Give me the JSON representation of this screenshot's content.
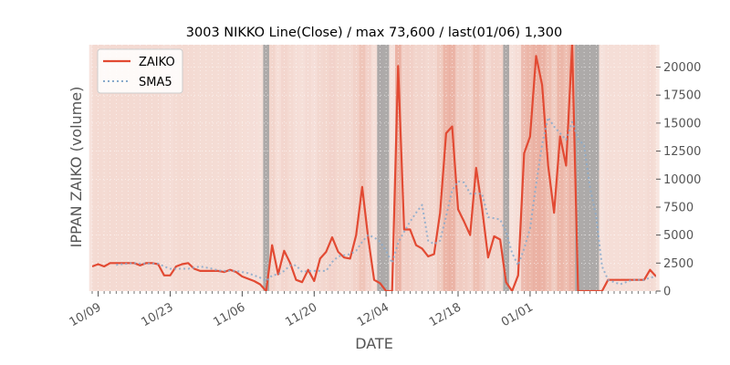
{
  "chart_data": {
    "type": "line",
    "title": "3003 NIKKO Line(Close) / max 73,600 / last(01/06) 1,300",
    "xlabel": "DATE",
    "ylabel": "IPPAN ZAIKO (volume)",
    "ylim": [
      0,
      22000
    ],
    "y_ticks": [
      0,
      2500,
      5000,
      7500,
      10000,
      12500,
      15000,
      17500,
      20000
    ],
    "y_tick_labels": [
      "0",
      "2500",
      "5000",
      "7500",
      "10000",
      "12500",
      "15000",
      "17500",
      "20000"
    ],
    "x_tick_labels": [
      "10/09",
      "10/23",
      "11/06",
      "11/20",
      "12/04",
      "12/18",
      "01/01"
    ],
    "x_tick_positions": [
      1,
      13,
      25,
      37,
      49,
      61,
      73
    ],
    "grid": true,
    "legend_position": "top-left",
    "series": [
      {
        "name": "ZAIKO",
        "color": "#e24a33",
        "style": "solid",
        "values": [
          2200,
          2400,
          2200,
          2500,
          2500,
          2500,
          2500,
          2500,
          2300,
          2500,
          2500,
          2400,
          1400,
          1400,
          2200,
          2400,
          2500,
          2000,
          1800,
          1800,
          1800,
          1800,
          1700,
          1900,
          1700,
          1300,
          1100,
          900,
          600,
          0,
          4100,
          1500,
          3600,
          2500,
          1000,
          800,
          1900,
          900,
          2900,
          3500,
          4800,
          3500,
          3000,
          2900,
          5000,
          9300,
          4800,
          1000,
          700,
          0,
          0,
          20100,
          5500,
          5500,
          4100,
          3800,
          3100,
          3300,
          7000,
          14100,
          14700,
          7300,
          6200,
          5000,
          11000,
          7400,
          3000,
          4900,
          4600,
          800,
          0,
          1400,
          12300,
          13800,
          21000,
          18400,
          11200,
          7000,
          13800,
          11200,
          22000,
          0,
          0,
          0,
          0,
          0,
          1000,
          1000,
          1000,
          1000,
          1000,
          1000,
          1000,
          1900,
          1300
        ]
      },
      {
        "name": "SMA5",
        "color": "#88aacc",
        "style": "dotted",
        "values": [
          null,
          null,
          null,
          null,
          2350,
          2400,
          2450,
          2500,
          2450,
          2450,
          2450,
          2450,
          2200,
          2000,
          2000,
          2000,
          2000,
          2100,
          2200,
          2100,
          2000,
          1850,
          1800,
          1800,
          1800,
          1700,
          1600,
          1400,
          1200,
          900,
          1400,
          1500,
          1800,
          2300,
          2300,
          1700,
          1800,
          1800,
          1800,
          1800,
          2600,
          3100,
          3200,
          3300,
          3600,
          4400,
          5000,
          4800,
          4400,
          3600,
          2500,
          4300,
          5300,
          6200,
          7000,
          7700,
          4500,
          4200,
          4500,
          6700,
          9000,
          9800,
          9700,
          8700,
          8700,
          8700,
          6600,
          6500,
          6400,
          5300,
          3400,
          2300,
          3800,
          5600,
          9500,
          13100,
          15500,
          14700,
          14100,
          13500,
          15100,
          13600,
          13000,
          9200,
          6700,
          2200,
          1000,
          800,
          600,
          800,
          1000,
          1000,
          1000,
          1200,
          1300
        ]
      }
    ],
    "bands": [
      {
        "start": 29,
        "end": 29,
        "color": "#a0a0a0"
      },
      {
        "start": 48,
        "end": 49,
        "color": "#a0a0a0"
      },
      {
        "start": 69,
        "end": 69,
        "color": "#a0a0a0"
      },
      {
        "start": 81,
        "end": 84,
        "color": "#a0a0a0"
      }
    ]
  }
}
